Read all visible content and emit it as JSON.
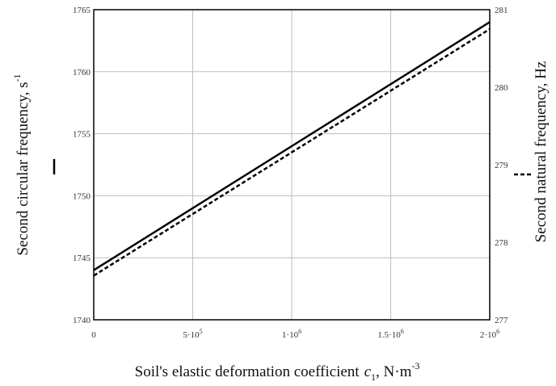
{
  "chart_data": {
    "type": "line",
    "xlabel": "Soil's elastic deformation coefficient",
    "xlabel_symbol": "c",
    "xlabel_subscript": "1",
    "xlabel_unit": ", N·m",
    "xlabel_unit_exp": "-3",
    "ylabel": "Second circular frequency, s",
    "ylabel_exp": "-1",
    "y2label": "Second natural frequency, Hz",
    "xlim": [
      0,
      2000000
    ],
    "ylim": [
      1740,
      1765
    ],
    "y2lim": [
      277,
      281
    ],
    "grid": true,
    "x_ticks": [
      {
        "value": 0,
        "mant": "0",
        "exp": ""
      },
      {
        "value": 500000,
        "mant": "5·10",
        "exp": "5"
      },
      {
        "value": 1000000,
        "mant": "1·10",
        "exp": "6"
      },
      {
        "value": 1500000,
        "mant": "1.5·10",
        "exp": "6"
      },
      {
        "value": 2000000,
        "mant": "2·10",
        "exp": "6"
      }
    ],
    "y_ticks": [
      "1740",
      "1745",
      "1750",
      "1755",
      "1760",
      "1765"
    ],
    "y2_ticks": [
      "277",
      "278",
      "279",
      "280",
      "281"
    ],
    "series": [
      {
        "axis": "left",
        "style": "solid",
        "color": "#000000",
        "x": [
          0,
          2000000
        ],
        "y": [
          1744.0,
          1764.0
        ]
      },
      {
        "axis": "right",
        "style": "dashed",
        "color": "#000000",
        "x": [
          0,
          2000000
        ],
        "y": [
          277.57,
          280.75
        ]
      }
    ]
  }
}
